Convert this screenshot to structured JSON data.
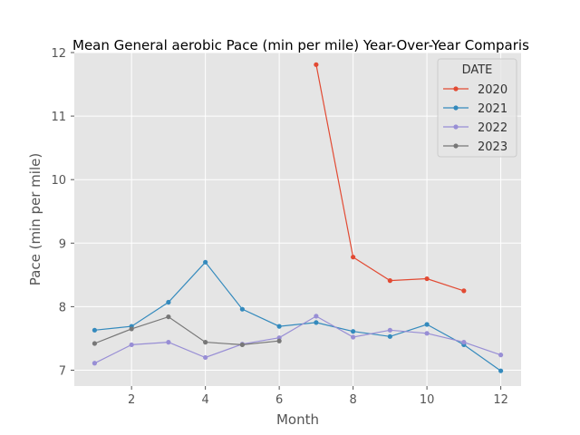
{
  "chart_data": {
    "type": "line",
    "title": "Mean General aerobic Pace (min per mile) Year-Over-Year Comparis",
    "xlabel": "Month",
    "ylabel": "Pace (min per mile)",
    "xlim": [
      0.45,
      12.55
    ],
    "ylim": [
      6.75,
      12.0
    ],
    "xticks": [
      2,
      4,
      6,
      8,
      10,
      12
    ],
    "yticks": [
      7,
      8,
      9,
      10,
      11,
      12
    ],
    "grid": true,
    "legend": {
      "title": "DATE",
      "placement": "top-right"
    },
    "series": [
      {
        "name": "2020",
        "color": "#e24a33",
        "x": [
          7,
          8,
          9,
          10,
          11
        ],
        "y": [
          11.81,
          8.78,
          8.41,
          8.44,
          8.25
        ]
      },
      {
        "name": "2021",
        "color": "#348abd",
        "x": [
          1,
          2,
          3,
          4,
          5,
          6,
          7,
          8,
          9,
          10,
          11,
          12
        ],
        "y": [
          7.63,
          7.69,
          8.07,
          8.7,
          7.96,
          7.69,
          7.75,
          7.61,
          7.53,
          7.72,
          7.4,
          6.99
        ]
      },
      {
        "name": "2022",
        "color": "#988ed5",
        "x": [
          1,
          2,
          3,
          4,
          5,
          6,
          7,
          8,
          9,
          10,
          11,
          12
        ],
        "y": [
          7.11,
          7.4,
          7.44,
          7.2,
          7.41,
          7.51,
          7.85,
          7.52,
          7.63,
          7.58,
          7.44,
          7.24
        ]
      },
      {
        "name": "2023",
        "color": "#777777",
        "x": [
          1,
          2,
          3,
          4,
          5,
          6
        ],
        "y": [
          7.42,
          7.65,
          7.84,
          7.44,
          7.4,
          7.46
        ]
      }
    ]
  }
}
